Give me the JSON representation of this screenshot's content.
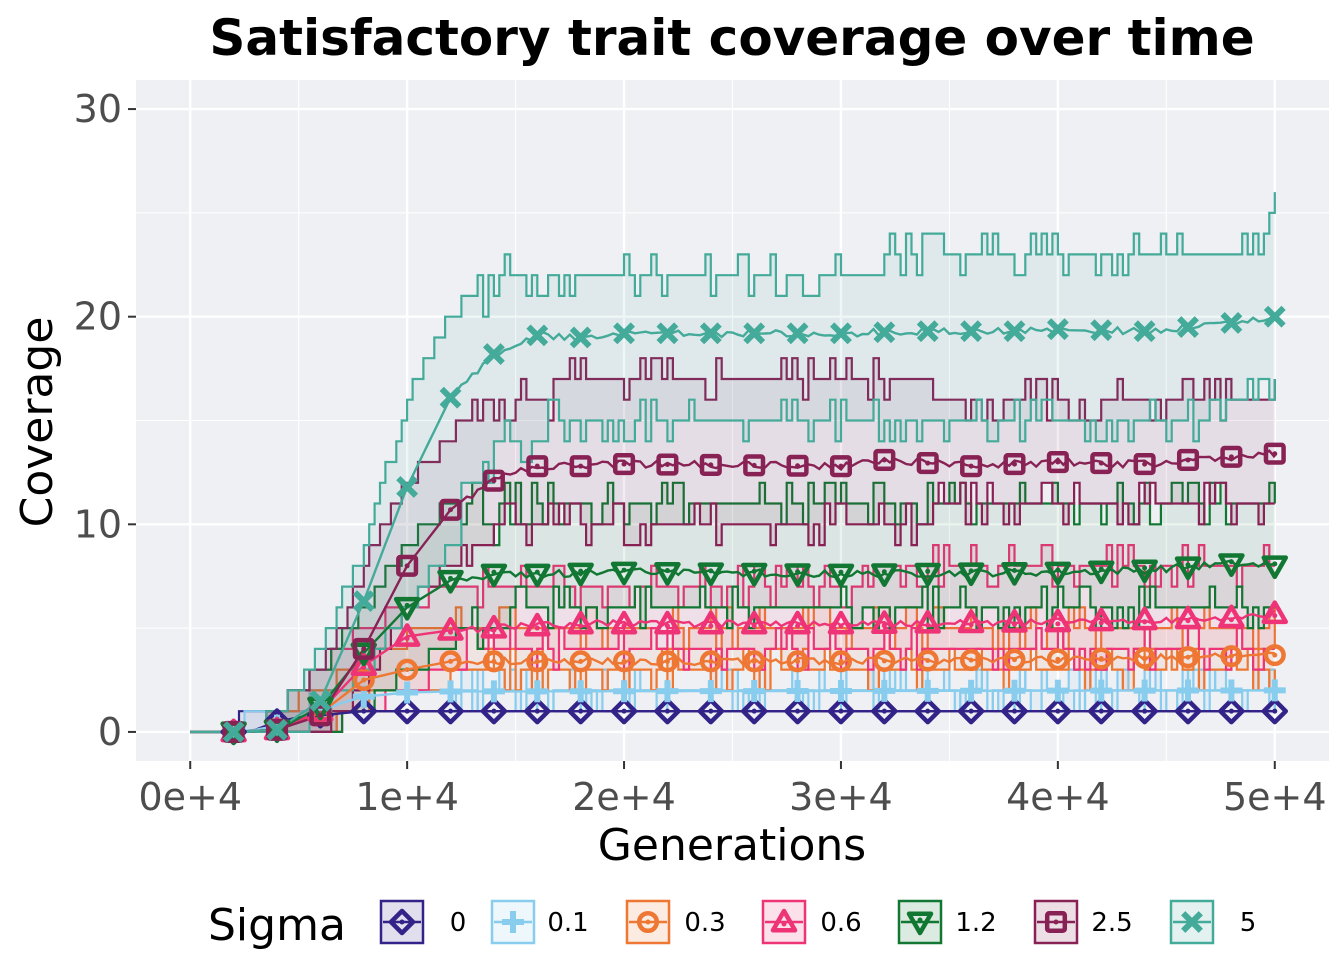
{
  "chart_data": {
    "type": "line",
    "title": "Satisfactory trait coverage over time",
    "xlabel": "Generations",
    "ylabel": "Coverage",
    "xlim": [
      -2500,
      52500
    ],
    "ylim": [
      -1.4,
      31.4
    ],
    "x_ticks": [
      0,
      10000,
      20000,
      30000,
      40000,
      50000
    ],
    "x_tick_labels": [
      "0e+4",
      "1e+4",
      "2e+4",
      "3e+4",
      "4e+4",
      "5e+4"
    ],
    "y_ticks": [
      0,
      10,
      20,
      30
    ],
    "y_tick_labels": [
      "0",
      "10",
      "20",
      "30"
    ],
    "grid": true,
    "legend": {
      "title": "Sigma",
      "position": "bottom"
    },
    "marker_x": [
      2000,
      4000,
      6000,
      8000,
      10000,
      12000,
      14000,
      16000,
      18000,
      20000,
      22000,
      24000,
      26000,
      28000,
      30000,
      32000,
      34000,
      36000,
      38000,
      40000,
      42000,
      44000,
      46000,
      48000,
      50000
    ],
    "series": [
      {
        "name": "0",
        "color": "#332288",
        "marker": "diamond",
        "mean": [
          [
            0,
            0
          ],
          [
            2000,
            0
          ],
          [
            3000,
            0.1
          ],
          [
            4000,
            0.5
          ],
          [
            5000,
            0.7
          ],
          [
            6000,
            0.8
          ],
          [
            7000,
            0.9
          ],
          [
            8000,
            1
          ],
          [
            50000,
            1
          ]
        ],
        "band": [
          [
            0,
            0,
            0
          ],
          [
            2000,
            0,
            0
          ],
          [
            2500,
            0,
            1
          ],
          [
            6000,
            0,
            1
          ],
          [
            7500,
            1,
            1
          ],
          [
            50000,
            1,
            1
          ]
        ]
      },
      {
        "name": "0.1",
        "color": "#88ccee",
        "marker": "plus",
        "mean": [
          [
            0,
            0
          ],
          [
            2000,
            0
          ],
          [
            3000,
            0.1
          ],
          [
            4000,
            0.3
          ],
          [
            5000,
            0.6
          ],
          [
            6000,
            1
          ],
          [
            7000,
            1.4
          ],
          [
            8000,
            1.7
          ],
          [
            10000,
            1.9
          ],
          [
            12000,
            1.95
          ],
          [
            50000,
            2
          ]
        ],
        "band": [
          [
            0,
            0,
            0
          ],
          [
            2000,
            0,
            0
          ],
          [
            3000,
            0,
            1
          ],
          [
            5000,
            0,
            1
          ],
          [
            6000,
            0,
            2
          ],
          [
            7500,
            1,
            2
          ],
          [
            8500,
            2,
            2
          ],
          [
            50000,
            2,
            2
          ]
        ]
      },
      {
        "name": "0.3",
        "color": "#ee7733",
        "marker": "circle",
        "mean": [
          [
            0,
            0
          ],
          [
            2000,
            0
          ],
          [
            4000,
            0.1
          ],
          [
            6000,
            0.9
          ],
          [
            8000,
            2.5
          ],
          [
            10000,
            3.0
          ],
          [
            12000,
            3.4
          ],
          [
            14000,
            3.4
          ],
          [
            16000,
            3.4
          ],
          [
            20000,
            3.4
          ],
          [
            30000,
            3.4
          ],
          [
            40000,
            3.5
          ],
          [
            46000,
            3.6
          ],
          [
            50000,
            3.7
          ]
        ],
        "band": [
          [
            0,
            0,
            0
          ],
          [
            3000,
            0,
            0
          ],
          [
            4000,
            0,
            1
          ],
          [
            6000,
            0,
            2
          ],
          [
            7500,
            1,
            3
          ],
          [
            9000,
            2,
            4
          ],
          [
            11000,
            2,
            5
          ],
          [
            13000,
            3,
            5
          ],
          [
            50000,
            3,
            5
          ]
        ]
      },
      {
        "name": "0.6",
        "color": "#ee3377",
        "marker": "triangle",
        "mean": [
          [
            0,
            0
          ],
          [
            2000,
            0
          ],
          [
            4000,
            0.1
          ],
          [
            6000,
            1
          ],
          [
            8000,
            3.2
          ],
          [
            10000,
            4.6
          ],
          [
            12000,
            4.9
          ],
          [
            14000,
            5.0
          ],
          [
            16000,
            5.1
          ],
          [
            18000,
            5.2
          ],
          [
            30000,
            5.2
          ],
          [
            40000,
            5.3
          ],
          [
            44000,
            5.4
          ],
          [
            48000,
            5.5
          ],
          [
            50000,
            5.7
          ]
        ],
        "band": [
          [
            0,
            0,
            0
          ],
          [
            3000,
            0,
            0
          ],
          [
            4000,
            0,
            1
          ],
          [
            6000,
            0,
            3
          ],
          [
            8000,
            1,
            5
          ],
          [
            10000,
            2,
            6
          ],
          [
            12000,
            3,
            7
          ],
          [
            13000,
            4,
            7
          ],
          [
            50000,
            4,
            8
          ]
        ]
      },
      {
        "name": "1.2",
        "color": "#117733",
        "marker": "triangle-down",
        "mean": [
          [
            0,
            0
          ],
          [
            2000,
            0
          ],
          [
            4000,
            0.1
          ],
          [
            6000,
            1.2
          ],
          [
            8000,
            3.8
          ],
          [
            10000,
            6.0
          ],
          [
            12000,
            7.3
          ],
          [
            14000,
            7.6
          ],
          [
            16000,
            7.6
          ],
          [
            20000,
            7.7
          ],
          [
            30000,
            7.6
          ],
          [
            40000,
            7.7
          ],
          [
            44000,
            7.8
          ],
          [
            48000,
            8.1
          ],
          [
            50000,
            8.0
          ]
        ],
        "band": [
          [
            0,
            0,
            0
          ],
          [
            3000,
            0,
            0
          ],
          [
            4000,
            0,
            1
          ],
          [
            6000,
            0,
            3
          ],
          [
            8000,
            1,
            6
          ],
          [
            10000,
            3,
            9
          ],
          [
            12000,
            4,
            11
          ],
          [
            13000,
            5,
            11
          ],
          [
            14000,
            5,
            10
          ],
          [
            15000,
            6,
            11
          ],
          [
            50000,
            6,
            11
          ]
        ]
      },
      {
        "name": "2.5",
        "color": "#882255",
        "marker": "square",
        "mean": [
          [
            0,
            0
          ],
          [
            2000,
            0
          ],
          [
            4000,
            0.1
          ],
          [
            6000,
            0.8
          ],
          [
            8000,
            4.0
          ],
          [
            10000,
            8.0
          ],
          [
            12000,
            10.7
          ],
          [
            14000,
            12.1
          ],
          [
            16000,
            12.8
          ],
          [
            18000,
            12.8
          ],
          [
            20000,
            12.9
          ],
          [
            30000,
            12.8
          ],
          [
            32000,
            13.1
          ],
          [
            36000,
            12.8
          ],
          [
            40000,
            13.0
          ],
          [
            44000,
            12.9
          ],
          [
            46000,
            13.1
          ],
          [
            50000,
            13.4
          ]
        ],
        "band": [
          [
            0,
            0,
            0
          ],
          [
            3000,
            0,
            0
          ],
          [
            4000,
            0,
            1
          ],
          [
            6000,
            0,
            3
          ],
          [
            7000,
            1,
            5
          ],
          [
            8000,
            2,
            8
          ],
          [
            10000,
            6,
            12
          ],
          [
            12000,
            8,
            14
          ],
          [
            14000,
            10,
            16
          ],
          [
            16000,
            10,
            16
          ],
          [
            18000,
            10,
            17
          ],
          [
            50000,
            11,
            16
          ]
        ]
      },
      {
        "name": "5",
        "color": "#44aa99",
        "marker": "cross",
        "mean": [
          [
            0,
            0
          ],
          [
            2000,
            0
          ],
          [
            4000,
            0.1
          ],
          [
            6000,
            1.5
          ],
          [
            8000,
            6.3
          ],
          [
            10000,
            11.8
          ],
          [
            12000,
            16.1
          ],
          [
            14000,
            18.2
          ],
          [
            16000,
            19.1
          ],
          [
            18000,
            19.0
          ],
          [
            20000,
            19.2
          ],
          [
            30000,
            19.2
          ],
          [
            34000,
            19.3
          ],
          [
            38000,
            19.3
          ],
          [
            40000,
            19.4
          ],
          [
            44000,
            19.3
          ],
          [
            48000,
            19.7
          ],
          [
            50000,
            20.0
          ]
        ],
        "band": [
          [
            0,
            0,
            0
          ],
          [
            3000,
            0,
            0
          ],
          [
            4000,
            0,
            1
          ],
          [
            5000,
            0,
            2
          ],
          [
            6000,
            1,
            4
          ],
          [
            8000,
            3,
            9
          ],
          [
            10000,
            6,
            16
          ],
          [
            12000,
            9,
            20
          ],
          [
            13000,
            12,
            21
          ],
          [
            14000,
            13,
            21
          ],
          [
            15000,
            14,
            22
          ],
          [
            18000,
            15,
            22
          ],
          [
            46000,
            15,
            23
          ],
          [
            48000,
            16,
            23
          ],
          [
            50000,
            17,
            25
          ]
        ]
      }
    ]
  }
}
